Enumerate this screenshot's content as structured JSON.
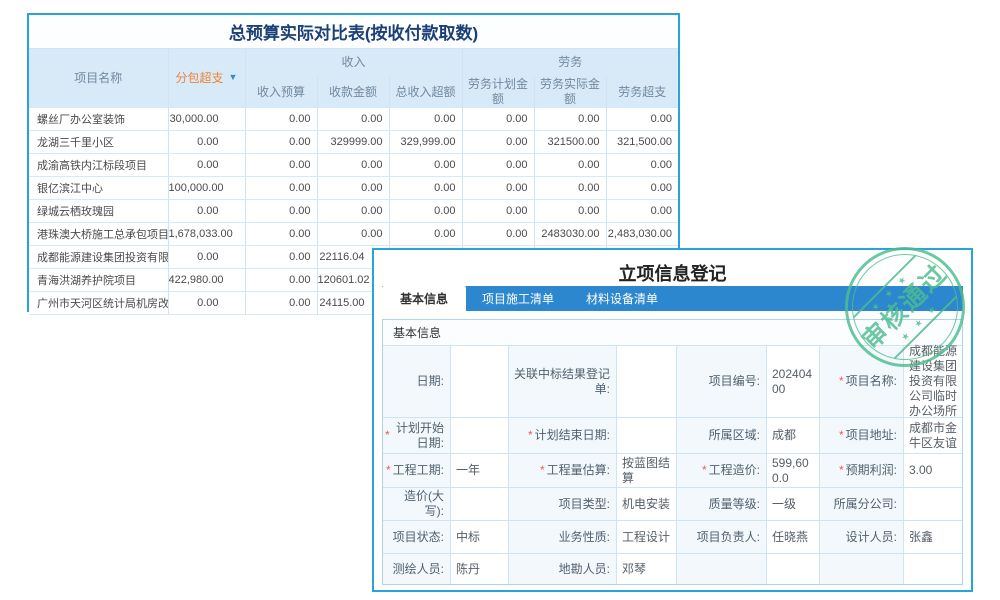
{
  "colors": {
    "window_border_blue": "#2aa2dc",
    "tab_blue": "#2d87ce",
    "header_bg": "#d8eaf7",
    "orange": "#ef8234",
    "value_blue": "#3f8fdb",
    "value_red": "#f15b5b",
    "stamp_green": "#4dbd8e"
  },
  "budget_window": {
    "title": "总预算实际对比表(按收付款取数)",
    "columns": {
      "project": "项目名称",
      "subcontract_overspend": "分包超支",
      "sort_arrow": "▼",
      "income_group": "收入",
      "income_budget": "收入预算",
      "receipt_amount": "收款金额",
      "total_income_excess": "总收入超额",
      "labor_group": "劳务",
      "labor_planned": "劳务计划金额",
      "labor_actual": "劳务实际金额",
      "labor_overspend": "劳务超支"
    },
    "rows": [
      {
        "name": "螺丝厂办公室装饰",
        "cells": [
          {
            "v": "30,000.00",
            "c": "red"
          },
          {
            "v": "0.00",
            "c": "blue"
          },
          {
            "v": "0.00",
            "c": "blue"
          },
          {
            "v": "0.00",
            "c": "dark"
          },
          {
            "v": "0.00",
            "c": "dark"
          },
          {
            "v": "0.00",
            "c": "blue"
          },
          {
            "v": "0.00",
            "c": "dark"
          }
        ]
      },
      {
        "name": "龙湖三千里小区",
        "cells": [
          {
            "v": "0.00",
            "c": "dark"
          },
          {
            "v": "0.00",
            "c": "blue"
          },
          {
            "v": "329999.00",
            "c": "blue"
          },
          {
            "v": "329,999.00",
            "c": "red"
          },
          {
            "v": "0.00",
            "c": "dark"
          },
          {
            "v": "321500.00",
            "c": "blue"
          },
          {
            "v": "321,500.00",
            "c": "red"
          }
        ]
      },
      {
        "name": "成渝高铁内江标段项目",
        "cells": [
          {
            "v": "0.00",
            "c": "dark"
          },
          {
            "v": "0.00",
            "c": "blue"
          },
          {
            "v": "0.00",
            "c": "blue"
          },
          {
            "v": "0.00",
            "c": "dark"
          },
          {
            "v": "0.00",
            "c": "dark"
          },
          {
            "v": "0.00",
            "c": "blue"
          },
          {
            "v": "0.00",
            "c": "dark"
          }
        ]
      },
      {
        "name": "银亿滨江中心",
        "cells": [
          {
            "v": "100,000.00",
            "c": "red"
          },
          {
            "v": "0.00",
            "c": "blue"
          },
          {
            "v": "0.00",
            "c": "blue"
          },
          {
            "v": "0.00",
            "c": "dark"
          },
          {
            "v": "0.00",
            "c": "dark"
          },
          {
            "v": "0.00",
            "c": "blue"
          },
          {
            "v": "0.00",
            "c": "dark"
          }
        ]
      },
      {
        "name": "绿城云栖玫瑰园",
        "cells": [
          {
            "v": "0.00",
            "c": "dark"
          },
          {
            "v": "0.00",
            "c": "blue"
          },
          {
            "v": "0.00",
            "c": "blue"
          },
          {
            "v": "0.00",
            "c": "dark"
          },
          {
            "v": "0.00",
            "c": "dark"
          },
          {
            "v": "0.00",
            "c": "blue"
          },
          {
            "v": "0.00",
            "c": "dark"
          }
        ]
      },
      {
        "name": "港珠澳大桥施工总承包项目",
        "cells": [
          {
            "v": "1,678,033.00",
            "c": "red"
          },
          {
            "v": "0.00",
            "c": "blue"
          },
          {
            "v": "0.00",
            "c": "blue"
          },
          {
            "v": "0.00",
            "c": "dark"
          },
          {
            "v": "0.00",
            "c": "dark"
          },
          {
            "v": "2483030.00",
            "c": "blue"
          },
          {
            "v": "2,483,030.00",
            "c": "red"
          }
        ]
      },
      {
        "name": "成都能源建设集团投资有限公司",
        "cells": [
          {
            "v": "0.00",
            "c": "dark"
          },
          {
            "v": "0.00",
            "c": "blue"
          },
          {
            "v": "22116.04",
            "c": "blue pad"
          },
          {
            "v": "",
            "c": "dark"
          },
          {
            "v": "",
            "c": "dark"
          },
          {
            "v": "",
            "c": "dark"
          },
          {
            "v": "",
            "c": "dark"
          }
        ]
      },
      {
        "name": "青海洪湖养护院项目",
        "cells": [
          {
            "v": "422,980.00",
            "c": "red"
          },
          {
            "v": "0.00",
            "c": "blue"
          },
          {
            "v": "120601.02",
            "c": "blue pad"
          },
          {
            "v": "",
            "c": "dark"
          },
          {
            "v": "",
            "c": "dark"
          },
          {
            "v": "",
            "c": "dark"
          },
          {
            "v": "",
            "c": "dark"
          }
        ]
      },
      {
        "name": "广州市天河区统计局机房改造",
        "cells": [
          {
            "v": "0.00",
            "c": "dark"
          },
          {
            "v": "0.00",
            "c": "blue"
          },
          {
            "v": "24115.00",
            "c": "blue pad"
          },
          {
            "v": "",
            "c": "dark"
          },
          {
            "v": "",
            "c": "dark"
          },
          {
            "v": "",
            "c": "dark"
          },
          {
            "v": "",
            "c": "dark"
          }
        ]
      }
    ]
  },
  "registration_window": {
    "title": "立项信息登记",
    "tabs": [
      {
        "label": "基本信息",
        "active": true
      },
      {
        "label": "项目施工清单",
        "active": false
      },
      {
        "label": "材料设备清单",
        "active": false
      }
    ],
    "section_title": "基本信息",
    "stamp": {
      "text": "审核通过",
      "stars": "★ ★ ★"
    },
    "form_rows": [
      [
        {
          "label": "日期:",
          "value": "",
          "required": false
        },
        {
          "label": "关联中标结果登记单:",
          "value": "",
          "required": false
        },
        {
          "label": "项目编号:",
          "value": "20240400",
          "required": false
        },
        {
          "label": "项目名称:",
          "value": "成都能源建设集团投资有限公司临时办公场所",
          "required": true
        }
      ],
      [
        {
          "label": "计划开始日期:",
          "value": "",
          "required": true
        },
        {
          "label": "计划结束日期:",
          "value": "",
          "required": true
        },
        {
          "label": "所属区域:",
          "value": "成都",
          "required": false
        },
        {
          "label": "项目地址:",
          "value": "成都市金牛区友谊",
          "required": true
        }
      ],
      [
        {
          "label": "工程工期:",
          "value": "一年",
          "required": true
        },
        {
          "label": "工程量估算:",
          "value": "按蓝图结算",
          "required": true
        },
        {
          "label": "工程造价:",
          "value": "599,600.0",
          "required": true
        },
        {
          "label": "预期利润:",
          "value": "3.00",
          "required": true
        }
      ],
      [
        {
          "label": "造价(大写):",
          "value": "",
          "required": false
        },
        {
          "label": "项目类型:",
          "value": "机电安装",
          "required": false
        },
        {
          "label": "质量等级:",
          "value": "一级",
          "required": false
        },
        {
          "label": "所属分公司:",
          "value": "",
          "required": false
        }
      ],
      [
        {
          "label": "项目状态:",
          "value": "中标",
          "required": false
        },
        {
          "label": "业务性质:",
          "value": "工程设计",
          "required": false
        },
        {
          "label": "项目负责人:",
          "value": "任晓燕",
          "required": false
        },
        {
          "label": "设计人员:",
          "value": "张鑫",
          "required": false
        }
      ],
      [
        {
          "label": "测绘人员:",
          "value": "陈丹",
          "required": false
        },
        {
          "label": "地勘人员:",
          "value": "邓琴",
          "required": false
        },
        {
          "label": "",
          "value": "",
          "required": false
        },
        {
          "label": "",
          "value": "",
          "required": false
        }
      ]
    ]
  }
}
